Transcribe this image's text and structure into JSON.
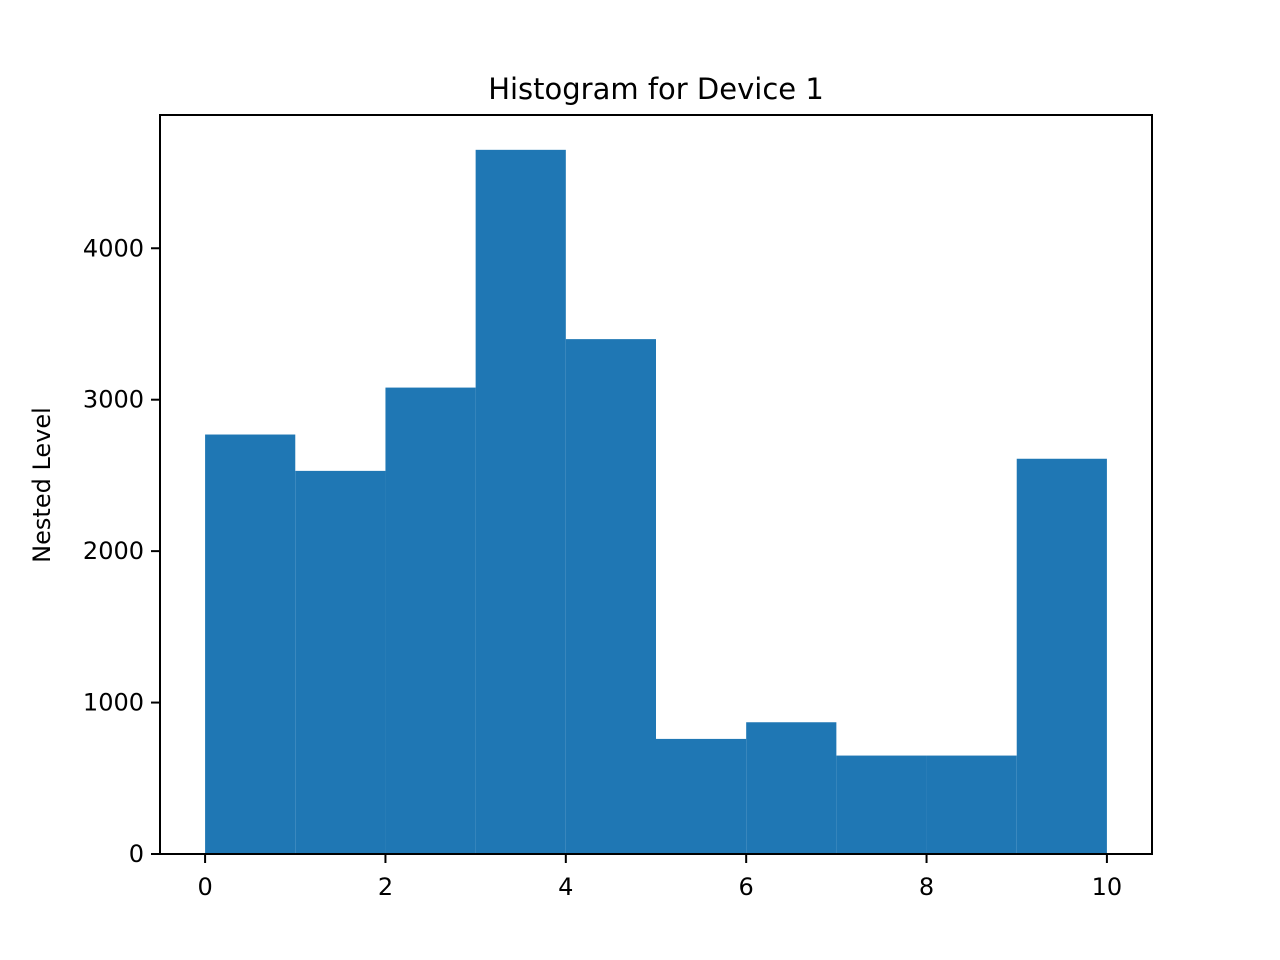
{
  "chart_data": {
    "type": "bar",
    "title": "Histogram for Device 1",
    "xlabel": "",
    "ylabel": "Nested Level",
    "xlim": [
      -0.5,
      10.5
    ],
    "ylim": [
      0,
      4880
    ],
    "grid": false,
    "bar_color": "#1f77b4",
    "bins": [
      {
        "x0": 0,
        "x1": 1,
        "value": 2770
      },
      {
        "x0": 1,
        "x1": 2,
        "value": 2530
      },
      {
        "x0": 2,
        "x1": 3,
        "value": 3080
      },
      {
        "x0": 3,
        "x1": 4,
        "value": 4650
      },
      {
        "x0": 4,
        "x1": 5,
        "value": 3400
      },
      {
        "x0": 5,
        "x1": 6,
        "value": 760
      },
      {
        "x0": 6,
        "x1": 7,
        "value": 870
      },
      {
        "x0": 7,
        "x1": 8,
        "value": 650
      },
      {
        "x0": 8,
        "x1": 9,
        "value": 650
      },
      {
        "x0": 9,
        "x1": 10,
        "value": 2610
      }
    ],
    "xticks": [
      0,
      2,
      4,
      6,
      8,
      10
    ],
    "xtick_labels": [
      "0",
      "2",
      "4",
      "6",
      "8",
      "10"
    ],
    "yticks": [
      0,
      1000,
      2000,
      3000,
      4000
    ],
    "ytick_labels": [
      "0",
      "1000",
      "2000",
      "3000",
      "4000"
    ]
  }
}
